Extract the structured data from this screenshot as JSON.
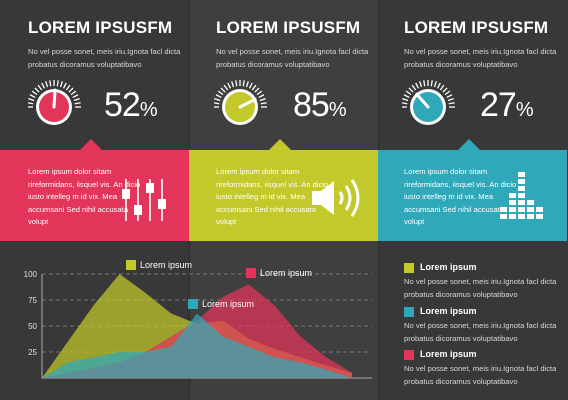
{
  "colors": {
    "red": "#e3355a",
    "green": "#c3c92a",
    "teal": "#2fa9ba"
  },
  "columns": [
    {
      "title": "LOREM IPSUSFM",
      "text": "No vel posse sonet, meis iriu.Ignota facl dicta probatus dicoramus voluptatibavo",
      "percent": 52,
      "percent_text": "52",
      "symbol": "%",
      "band_text": "Lorem ipsum dolor sitam rireformidans, iisquel vis. An dicio iusto intelleg m id vix. Mea accumsani Sed nihil accusata volupt",
      "band_icon": "equalizer-sliders-icon"
    },
    {
      "title": "LOREM IPSUSFM",
      "text": "No vel posse sonet, meis iriu.Ignota facl dicta probatus dicoramus voluptatibavo",
      "percent": 85,
      "percent_text": "85",
      "symbol": "%",
      "band_text": "Lorem ipsum dolor sitam rireformidans, iisquel vis. An dicio iusto intelleg m id vix. Mea accumsani Sed nihil accusata volupt",
      "band_icon": "speaker-icon"
    },
    {
      "title": "LOREM IPSUSFM",
      "text": "No vel posse sonet, meis iriu.Ignota facl dicta probatus dicoramus voluptatibavo",
      "percent": 27,
      "percent_text": "27",
      "symbol": "%",
      "band_text": "Lorem ipsum dolor sitam rireformidans, iisquel vis. An dicio iusto intelleg m id vix. Mea accumsani Sed nihil accusata volupt",
      "band_icon": "bar-level-icon"
    }
  ],
  "chart_data": {
    "type": "area",
    "x": [
      0,
      1,
      2,
      3,
      4,
      5,
      6,
      7,
      8,
      9,
      10,
      11,
      12
    ],
    "ylim": [
      0,
      100
    ],
    "yticks": [
      "25",
      "50",
      "75",
      "100"
    ],
    "series": [
      {
        "name": "Lorem ipsum",
        "color": "#c3c92a",
        "values": [
          0,
          35,
          70,
          100,
          82,
          62,
          52,
          55,
          38,
          28,
          20,
          12,
          5
        ]
      },
      {
        "name": "Lorem ipsum",
        "color": "#e3355a",
        "values": [
          0,
          5,
          10,
          15,
          25,
          40,
          55,
          78,
          90,
          70,
          40,
          20,
          5
        ]
      },
      {
        "name": "Lorem ipsum",
        "color": "#2fa9ba",
        "values": [
          0,
          15,
          20,
          25,
          25,
          30,
          62,
          40,
          30,
          20,
          15,
          8,
          0
        ]
      }
    ]
  },
  "right_legend": [
    {
      "color": "#c3c92a",
      "title": "Lorem ipsum",
      "text": "No vel posse sonet, meis iriu.Ignota facl dicta probatus dicoramus voluptatibavo"
    },
    {
      "color": "#2fa9ba",
      "title": "Lorem ipsum",
      "text": "No vel posse sonet, meis iriu.Ignota facl dicta probatus dicoramus voluptatibavo"
    },
    {
      "color": "#e3355a",
      "title": "Lorem ipsum",
      "text": "No vel posse sonet, meis iriu.Ignota facl dicta probatus dicoramus voluptatibavo"
    }
  ]
}
